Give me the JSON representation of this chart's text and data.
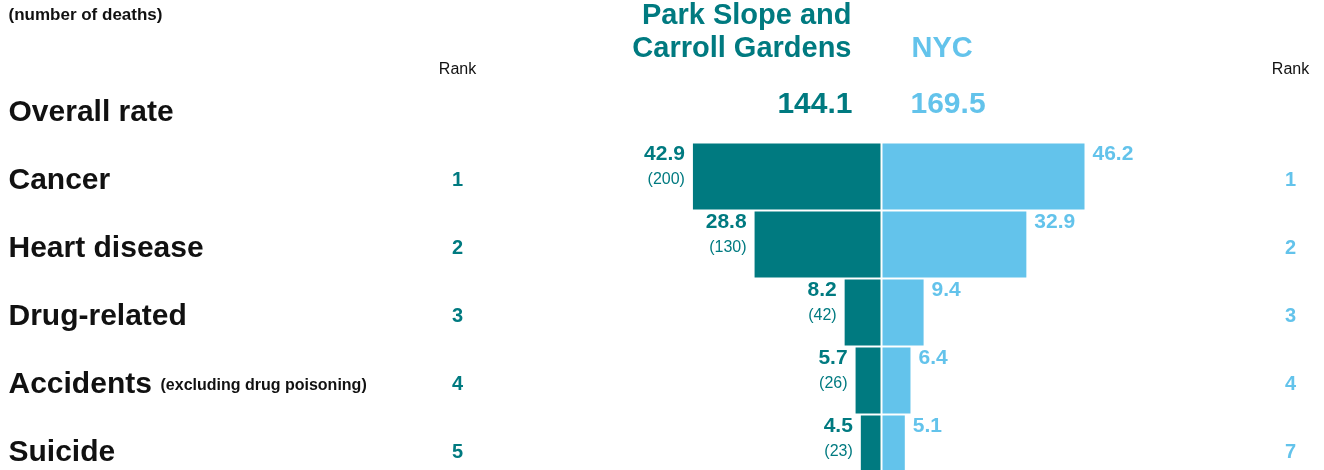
{
  "chart_data": [
    {
      "type": "bar",
      "orientation": "horizontal",
      "subtitle": "(number of deaths)",
      "categories": [
        "Overall rate",
        "Cancer",
        "Heart disease",
        "Drug-related",
        "Accidents (excluding drug poisoning)",
        "Suicide"
      ],
      "series": [
        {
          "name": "Park Slope and Carroll Gardens",
          "color": "#007a80",
          "values": [
            null,
            42.9,
            28.8,
            8.2,
            5.7,
            4.5
          ],
          "value_labels": [
            "144.1",
            "42.9\n(200)",
            "28.8\n(130)",
            "8.2\n(42)",
            "5.7\n(26)",
            "4.5\n(23)"
          ]
        }
      ],
      "annotations": [
        "Rank",
        "1",
        "2",
        "3",
        "4",
        "5"
      ]
    },
    {
      "type": "bar",
      "orientation": "horizontal",
      "categories": [
        null,
        null,
        null,
        null,
        null,
        null
      ],
      "series": [
        {
          "name": "NYC",
          "color": "#63c3eb",
          "values": [
            null,
            46.2,
            32.9,
            9.4,
            6.4,
            5.1
          ],
          "value_labels": [
            "169.5",
            "46.2",
            "32.9",
            "9.4",
            "6.4",
            "5.1"
          ]
        }
      ],
      "annotations": [
        "Rank",
        "1",
        "2",
        "3",
        "4",
        "7"
      ]
    }
  ]
}
